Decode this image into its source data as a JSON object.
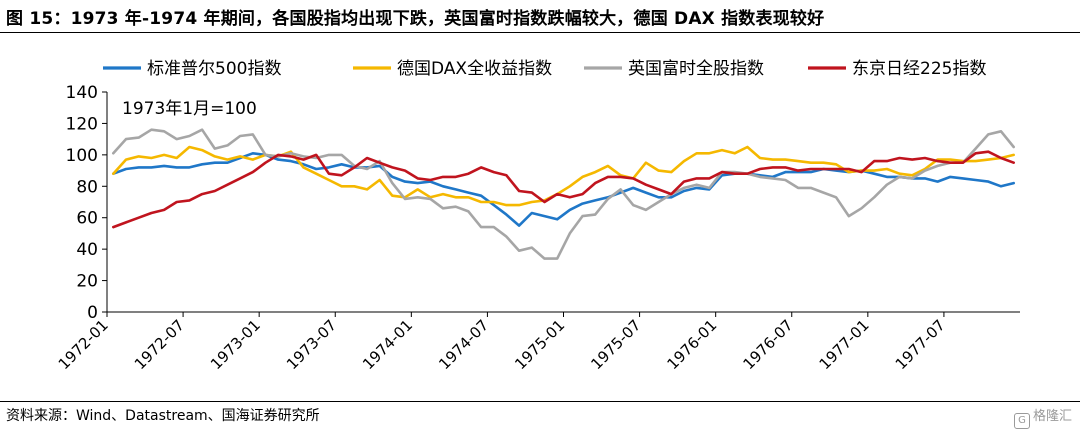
{
  "title": "图 15：1973 年-1974 年期间，各国股指均出现下跌，英国富时指数跌幅较大，德国 DAX 指数表现较好",
  "source": "资料来源：Wind、Datastream、国海证券研究所",
  "watermark": "格隆汇",
  "chart_data": {
    "type": "line",
    "annotation": "1973年1月=100",
    "ylim": [
      0,
      140
    ],
    "yticks": [
      0,
      20,
      40,
      60,
      80,
      100,
      120,
      140
    ],
    "xlabel": "",
    "ylabel": "",
    "grid": false,
    "legend_position": "top",
    "x_start": "1972-01",
    "x_end": "1977-12",
    "xticks": [
      "1972-01",
      "1972-07",
      "1973-01",
      "1973-07",
      "1974-01",
      "1974-07",
      "1975-01",
      "1975-07",
      "1976-01",
      "1976-07",
      "1977-01",
      "1977-07"
    ],
    "series": [
      {
        "name": "标准普尔500指数",
        "color": "#1f77c8",
        "values": [
          88,
          91,
          92,
          92,
          93,
          92,
          92,
          94,
          95,
          95,
          98,
          101,
          100,
          97,
          96,
          94,
          91,
          92,
          94,
          92,
          92,
          93,
          86,
          83,
          82,
          83,
          80,
          78,
          76,
          74,
          68,
          62,
          55,
          63,
          61,
          59,
          65,
          69,
          71,
          73,
          76,
          79,
          76,
          73,
          73,
          77,
          79,
          78,
          87,
          88,
          88,
          87,
          86,
          89,
          89,
          89,
          91,
          90,
          89,
          90,
          88,
          86,
          86,
          85,
          85,
          83,
          86,
          85,
          84,
          83,
          80,
          82
        ]
      },
      {
        "name": "德国DAX全收益指数",
        "color": "#f5b800",
        "values": [
          88,
          97,
          99,
          98,
          100,
          98,
          105,
          103,
          99,
          97,
          99,
          97,
          100,
          99,
          102,
          92,
          88,
          84,
          80,
          80,
          78,
          84,
          74,
          73,
          78,
          73,
          75,
          73,
          73,
          70,
          70,
          68,
          68,
          70,
          71,
          75,
          80,
          86,
          89,
          93,
          87,
          85,
          95,
          90,
          89,
          96,
          101,
          101,
          103,
          101,
          105,
          98,
          97,
          97,
          96,
          95,
          95,
          94,
          89,
          90,
          90,
          91,
          88,
          87,
          91,
          97,
          97,
          96,
          96,
          97,
          98,
          100
        ]
      },
      {
        "name": "英国富时全股指数",
        "color": "#a6a6a6",
        "values": [
          101,
          110,
          111,
          116,
          115,
          110,
          112,
          116,
          104,
          106,
          112,
          113,
          100,
          99,
          101,
          99,
          98,
          100,
          100,
          93,
          91,
          96,
          82,
          72,
          73,
          72,
          66,
          67,
          64,
          54,
          54,
          48,
          39,
          41,
          34,
          34,
          50,
          61,
          62,
          72,
          78,
          68,
          65,
          70,
          75,
          79,
          81,
          79,
          89,
          89,
          88,
          86,
          85,
          84,
          79,
          79,
          76,
          73,
          61,
          66,
          73,
          81,
          86,
          85,
          90,
          93,
          95,
          95,
          104,
          113,
          115,
          105
        ]
      },
      {
        "name": "东京日经225指数",
        "color": "#c0141e",
        "values": [
          54,
          57,
          60,
          63,
          65,
          70,
          71,
          75,
          77,
          81,
          85,
          89,
          95,
          100,
          99,
          97,
          100,
          88,
          87,
          92,
          98,
          95,
          92,
          90,
          85,
          84,
          86,
          86,
          88,
          92,
          89,
          87,
          77,
          76,
          70,
          75,
          73,
          75,
          82,
          86,
          86,
          85,
          81,
          78,
          75,
          83,
          85,
          85,
          89,
          88,
          88,
          91,
          92,
          92,
          90,
          91,
          91,
          91,
          91,
          89,
          96,
          96,
          98,
          97,
          98,
          96,
          95,
          95,
          101,
          102,
          98,
          95
        ]
      }
    ]
  }
}
